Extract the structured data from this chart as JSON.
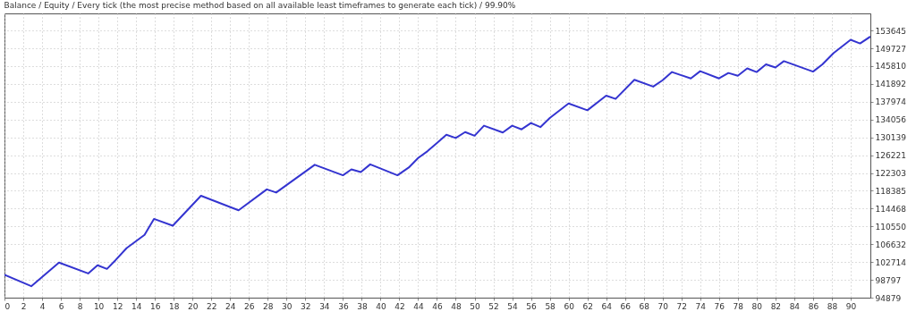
{
  "chart_data": {
    "type": "line",
    "title": "Balance / Equity / Every tick (the most precise method based on all available least timeframes to generate each tick) / 99.90%",
    "xlim": [
      0,
      92.1
    ],
    "xticks": [
      0,
      2,
      4,
      6,
      8,
      10,
      12,
      14,
      16,
      18,
      20,
      22,
      24,
      26,
      28,
      30,
      32,
      34,
      36,
      38,
      40,
      42,
      44,
      46,
      48,
      50,
      52,
      54,
      56,
      58,
      60,
      62,
      64,
      66,
      68,
      70,
      72,
      74,
      76,
      78,
      80,
      82,
      84,
      86,
      88,
      90
    ],
    "ylim": [
      94879,
      157400
    ],
    "yticks": [
      94879,
      98797,
      102714,
      106632,
      110550,
      114468,
      118385,
      122303,
      126221,
      130139,
      134056,
      137974,
      141892,
      145810,
      149727,
      153645
    ],
    "grid": true,
    "series": [
      {
        "color": "#3434d0",
        "x": [
          0,
          2.85,
          5.8,
          8.9,
          9.9,
          10.9,
          11.8,
          13,
          14.9,
          15.9,
          17.9,
          20.9,
          24.9,
          27.9,
          28.9,
          33,
          36,
          36.9,
          37.9,
          38.9,
          41.8,
          43,
          44,
          45,
          46,
          47,
          48,
          49,
          50,
          51,
          53,
          54,
          55,
          56,
          57,
          58,
          60,
          62,
          64,
          65,
          67,
          69,
          70,
          71,
          73,
          74,
          76,
          77,
          78,
          79,
          80,
          81,
          82,
          82.9,
          86,
          87,
          88.2,
          90,
          91,
          92.1
        ],
        "values": [
          99900,
          97400,
          102600,
          100200,
          102000,
          101200,
          103100,
          105800,
          108700,
          112200,
          110700,
          117300,
          114100,
          118700,
          118000,
          124100,
          121800,
          123100,
          122500,
          124200,
          121800,
          123500,
          125600,
          127100,
          128900,
          130700,
          130000,
          131300,
          130500,
          132700,
          131200,
          132700,
          131900,
          133300,
          132400,
          134400,
          137600,
          136100,
          139300,
          138600,
          142800,
          141300,
          142700,
          144500,
          143100,
          144700,
          143100,
          144300,
          143700,
          145300,
          144500,
          146200,
          145500,
          146900,
          144600,
          146200,
          148700,
          151600,
          150800,
          152300
        ]
      }
    ]
  }
}
